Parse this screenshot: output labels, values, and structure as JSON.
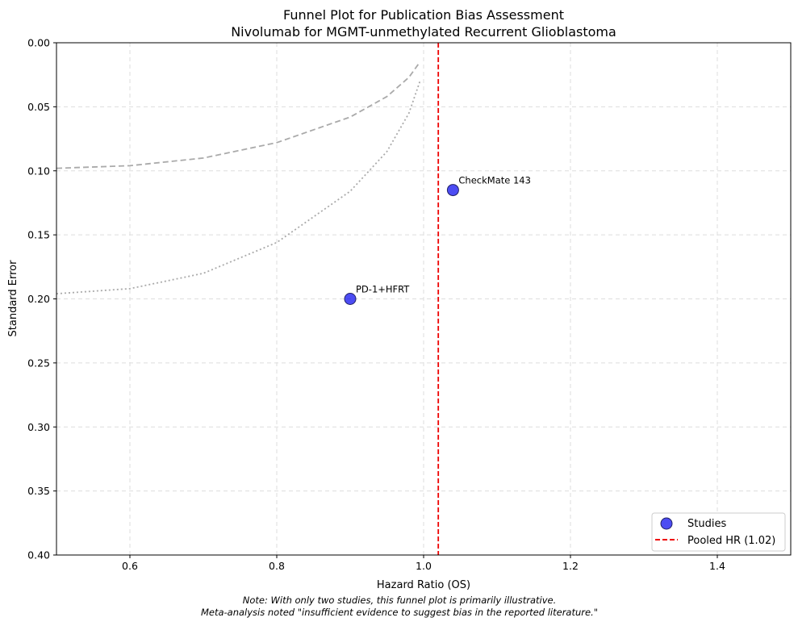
{
  "chart_data": {
    "type": "scatter",
    "title": "Funnel Plot for Publication Bias Assessment",
    "subtitle": "Nivolumab for MGMT-unmethylated Recurrent Glioblastoma",
    "xlabel": "Hazard Ratio (OS)",
    "ylabel": "Standard Error",
    "xlim": [
      0.5,
      1.5
    ],
    "ylim": [
      0.4,
      0.0
    ],
    "y_inverted": true,
    "xticks": [
      "0.6",
      "0.8",
      "1.0",
      "1.2",
      "1.4"
    ],
    "yticks": [
      "0.00",
      "0.05",
      "0.10",
      "0.15",
      "0.20",
      "0.25",
      "0.30",
      "0.35",
      "0.40"
    ],
    "grid": true,
    "series": [
      {
        "name": "Studies",
        "color": "#0000ee",
        "points": [
          {
            "label": "CheckMate 143",
            "x": 1.04,
            "y": 0.115
          },
          {
            "label": "PD-1+HFRT",
            "x": 0.9,
            "y": 0.2
          }
        ]
      }
    ],
    "reference_line": {
      "name": "Pooled HR (1.02)",
      "x": 1.02,
      "color": "#ee0000",
      "style": "dashed"
    },
    "funnel_curves": [
      {
        "style": "dashed",
        "color": "#aaaaaa",
        "x": [
          0.5,
          0.6,
          0.7,
          0.8,
          0.9,
          0.95,
          0.98,
          0.995
        ],
        "y": [
          0.098,
          0.096,
          0.09,
          0.078,
          0.058,
          0.042,
          0.027,
          0.015
        ]
      },
      {
        "style": "dotted",
        "color": "#aaaaaa",
        "x": [
          0.5,
          0.6,
          0.7,
          0.8,
          0.9,
          0.95,
          0.98,
          0.995
        ],
        "y": [
          0.196,
          0.192,
          0.18,
          0.156,
          0.116,
          0.085,
          0.055,
          0.03
        ]
      }
    ],
    "legend_position": "lower-right",
    "note": [
      "Note: With only two studies, this funnel plot is primarily illustrative.",
      "Meta-analysis noted \"insufficient evidence to suggest bias in the reported literature.\""
    ]
  }
}
